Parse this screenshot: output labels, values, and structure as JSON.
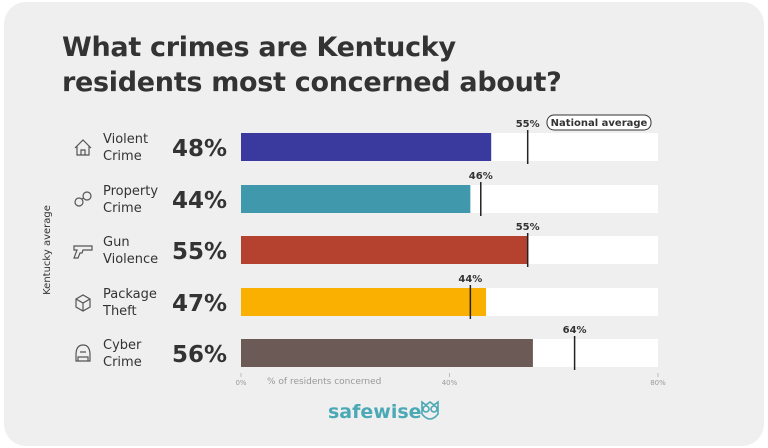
{
  "title_line1": "What crimes are Kentucky",
  "title_line2": "residents most concerned about?",
  "chart_data": {
    "type": "bar",
    "orientation": "horizontal",
    "categories": [
      [
        "Violent",
        "Crime"
      ],
      [
        "Property",
        "Crime"
      ],
      [
        "Gun",
        "Violence"
      ],
      [
        "Package",
        "Theft"
      ],
      [
        "Cyber",
        "Crime"
      ]
    ],
    "icons": [
      "house-icon",
      "handcuffs-icon",
      "gun-icon",
      "package-icon",
      "hacker-icon"
    ],
    "series": [
      {
        "name": "Kentucky average",
        "values": [
          48,
          44,
          55,
          47,
          56
        ],
        "value_labels": [
          "48%",
          "44%",
          "55%",
          "47%",
          "56%"
        ]
      },
      {
        "name": "National average",
        "values": [
          55,
          46,
          55,
          44,
          64
        ],
        "value_labels": [
          "55%",
          "46%",
          "55%",
          "44%",
          "64%"
        ]
      }
    ],
    "colors": [
      "#3a3a9e",
      "#3f98ab",
      "#b5412f",
      "#f9b000",
      "#6b5a55"
    ],
    "xlim": [
      0,
      80
    ],
    "ticks": [
      "0%",
      "40%",
      "80%"
    ],
    "tick_values": [
      0,
      40,
      80
    ],
    "xlabel": "% of residents concerned",
    "ylabel": "Kentucky average",
    "legend": "National average"
  },
  "brand": "safewise"
}
